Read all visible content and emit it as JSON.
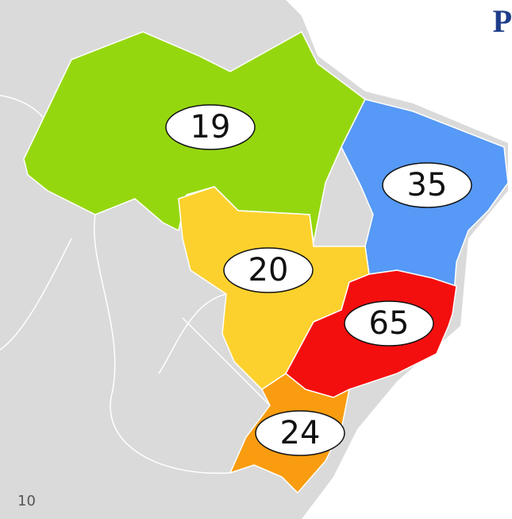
{
  "logo": "P",
  "page_number": "10",
  "regions": [
    {
      "label": 19,
      "color": "#95d70f"
    },
    {
      "label": 35,
      "color": "#5699f6"
    },
    {
      "label": 20,
      "color": "#fdd12d"
    },
    {
      "label": 65,
      "color": "#f40f0f"
    },
    {
      "label": 24,
      "color": "#f99c0f"
    }
  ]
}
